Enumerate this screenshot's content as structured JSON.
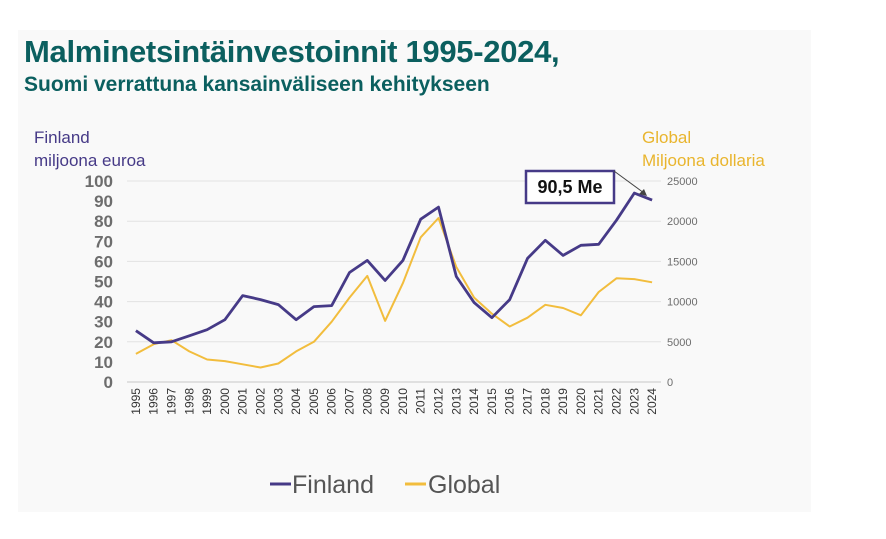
{
  "title": "Malminetsintäinvestoinnit 1995-2024,",
  "subtitle": "Suomi verrattuna kansainväliseen kehitykseen",
  "left_axis": {
    "line1": "Finland",
    "line2": "miljoona euroa"
  },
  "right_axis": {
    "line1": "Global",
    "line2": "Miljoona dollaria"
  },
  "callout": "90,5 Me",
  "legend": [
    "Finland",
    "Global"
  ],
  "colors": {
    "finland": "#463a87",
    "global": "#f2bd3d",
    "title": "#0b5f5f"
  },
  "chart_data": {
    "type": "line",
    "x": [
      "1995",
      "1996",
      "1997",
      "1998",
      "1999",
      "2000",
      "2001",
      "2002",
      "2003",
      "2004",
      "2005",
      "2006",
      "2007",
      "2008",
      "2009",
      "2010",
      "2011",
      "2012",
      "2013",
      "2014",
      "2015",
      "2016",
      "2017",
      "2018",
      "2019",
      "2020",
      "2021",
      "2022",
      "2023",
      "2024"
    ],
    "series": [
      {
        "name": "Finland",
        "axis": "left",
        "values": [
          25.5,
          19.5,
          20,
          23,
          26,
          31,
          43,
          41,
          38.5,
          31,
          37.5,
          38,
          54.5,
          60.5,
          50.5,
          60.5,
          81,
          87,
          52.5,
          39.5,
          32,
          41,
          61.5,
          70.5,
          63,
          68,
          68.5,
          80.5,
          94,
          90.5
        ]
      },
      {
        "name": "Global",
        "axis": "right",
        "values": [
          3500,
          4700,
          5200,
          3800,
          2800,
          2600,
          2200,
          1800,
          2300,
          3800,
          5000,
          7500,
          10500,
          13200,
          7600,
          12300,
          18000,
          20400,
          14300,
          10500,
          8500,
          6900,
          8000,
          9600,
          9200,
          8300,
          11200,
          12900,
          12800,
          12400
        ]
      }
    ],
    "left_ylim": [
      0,
      100
    ],
    "left_ticks": [
      0,
      10,
      20,
      30,
      40,
      50,
      60,
      70,
      80,
      90,
      100
    ],
    "right_ylim": [
      0,
      25000
    ],
    "right_ticks": [
      0,
      5000,
      10000,
      15000,
      20000,
      25000
    ],
    "grid": true,
    "legend_position": "bottom"
  }
}
